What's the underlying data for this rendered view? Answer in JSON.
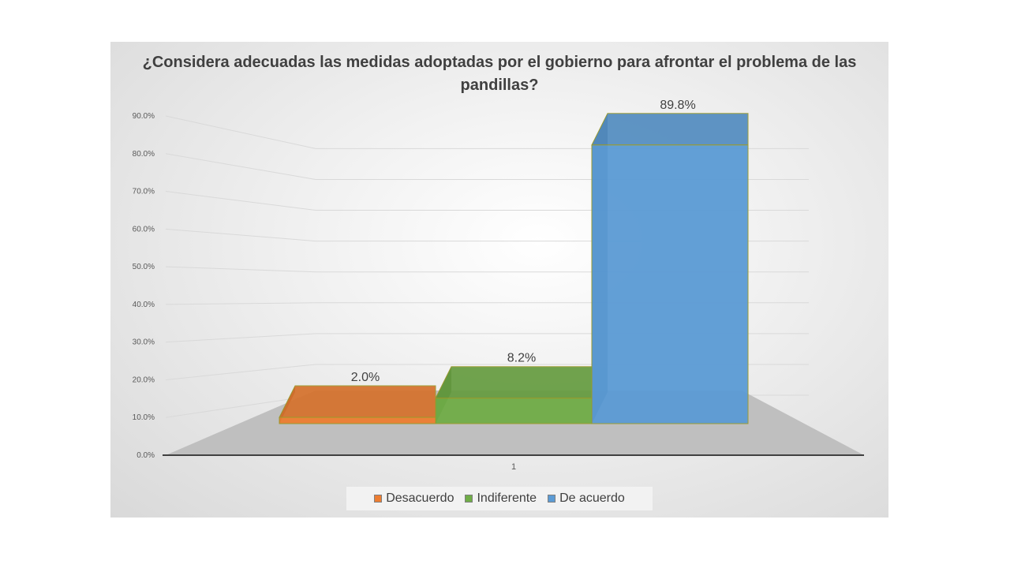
{
  "chart_data": {
    "type": "bar",
    "title": "¿Considera adecuadas las medidas adoptadas por el gobierno para afrontar el problema de las pandillas?",
    "categories": [
      "1"
    ],
    "series": [
      {
        "name": "Desacuerdo",
        "values": [
          2.0
        ],
        "color": "#ed7d31",
        "label": "2.0%"
      },
      {
        "name": "Indiferente",
        "values": [
          8.2
        ],
        "color": "#70ad47",
        "label": "8.2%"
      },
      {
        "name": "De acuerdo",
        "values": [
          89.8
        ],
        "color": "#5b9bd5",
        "label": "89.8%"
      }
    ],
    "y_ticks": [
      "0.0%",
      "10.0%",
      "20.0%",
      "30.0%",
      "40.0%",
      "50.0%",
      "60.0%",
      "70.0%",
      "80.0%",
      "90.0%"
    ],
    "ylim": [
      0,
      90
    ],
    "xlabel": "",
    "ylabel": "",
    "grid": true,
    "legend_position": "bottom",
    "style": "3d-column"
  }
}
